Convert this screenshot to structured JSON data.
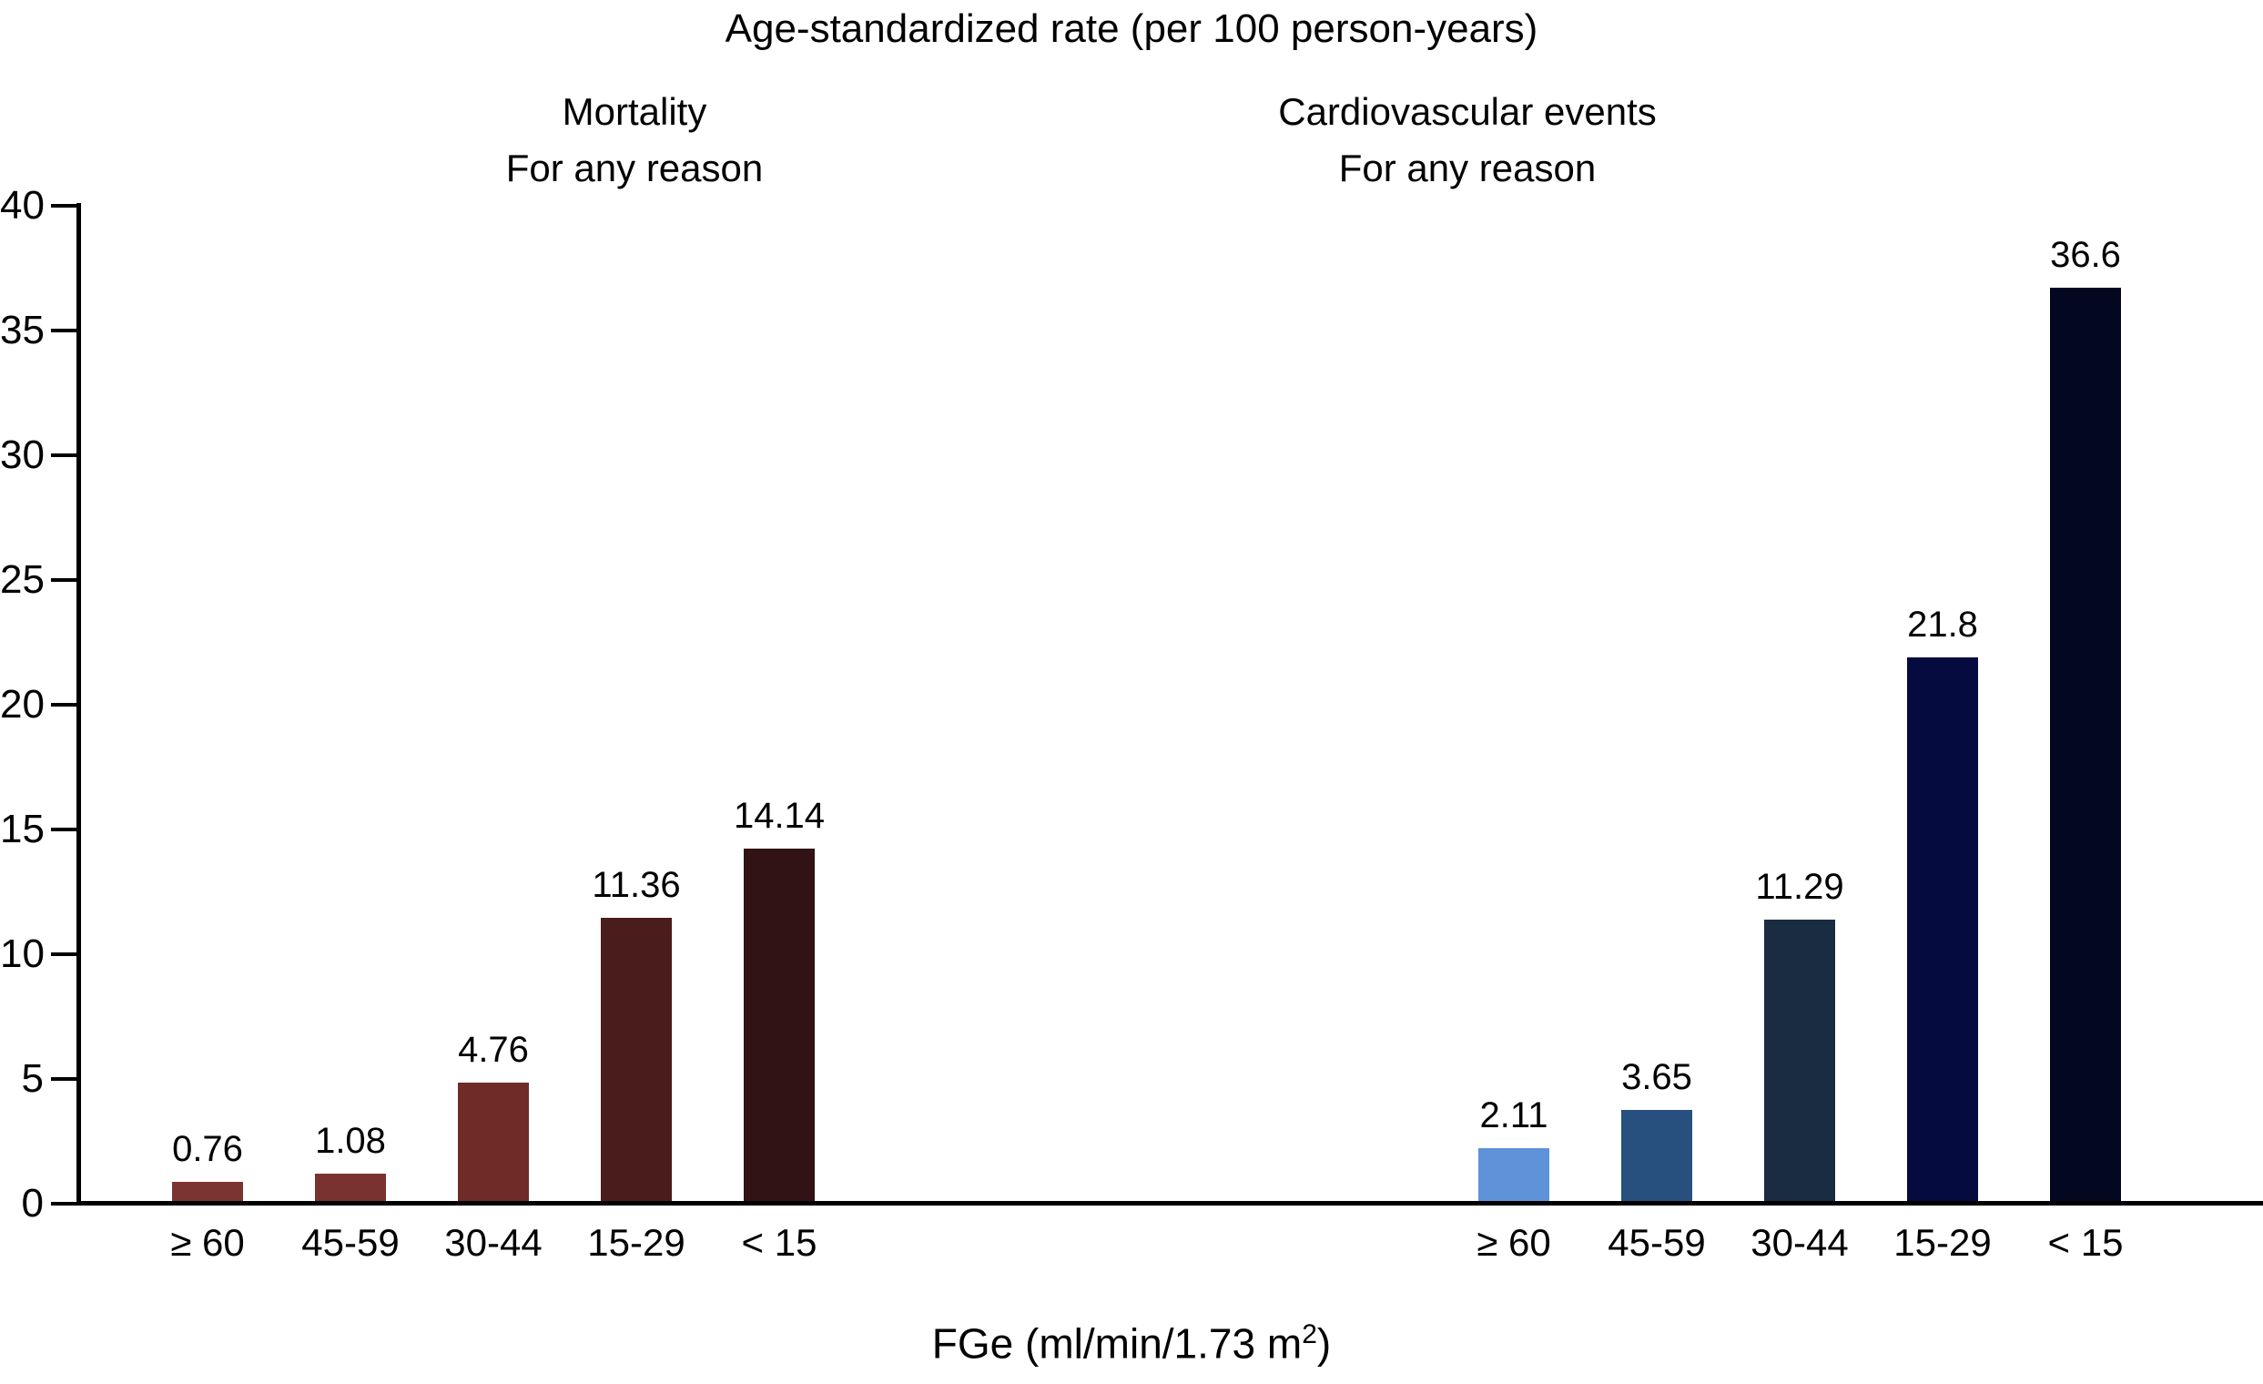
{
  "chart_data": {
    "type": "bar",
    "title": "Age-standardized rate (per 100 person-years)",
    "xlabel": {
      "prefix": "FGe (ml/min/1.73 m",
      "sup": "2",
      "suffix": ")"
    },
    "ylim": [
      0,
      40
    ],
    "yticks": [
      0,
      5,
      10,
      15,
      20,
      25,
      30,
      35,
      40
    ],
    "grid": false,
    "legend": "none",
    "categories": [
      "≥ 60",
      "45-59",
      "30-44",
      "15-29",
      "< 15"
    ],
    "series": [
      {
        "name": "Mortality",
        "subtitle": "For any reason",
        "values": [
          0.76,
          1.08,
          4.76,
          11.36,
          14.14
        ],
        "labels": [
          "0.76",
          "1.08",
          "4.76",
          "11.36",
          "14.14"
        ],
        "colors": [
          "#7c3430",
          "#7a322f",
          "#6f2b28",
          "#4a1d1c",
          "#301312"
        ]
      },
      {
        "name": "Cardiovascular events",
        "subtitle": "For any reason",
        "values": [
          2.11,
          3.65,
          11.29,
          21.8,
          36.6
        ],
        "labels": [
          "2.11",
          "3.65",
          "11.29",
          "21.8",
          "36.6"
        ],
        "colors": [
          "#5e93d9",
          "#27507e",
          "#1a2c41",
          "#050b3f",
          "#030720"
        ]
      }
    ],
    "axis_color": "#000000",
    "text_color": "#000000"
  }
}
